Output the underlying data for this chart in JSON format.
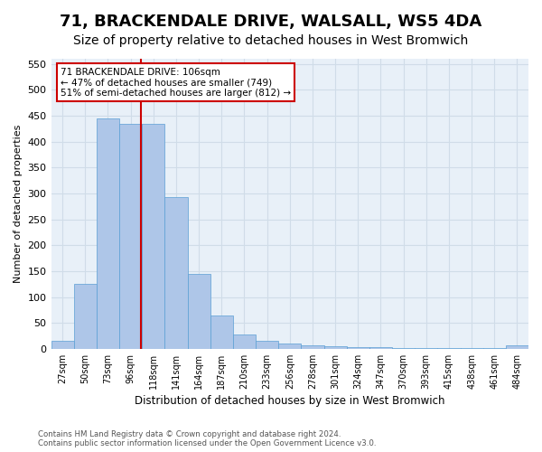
{
  "title": "71, BRACKENDALE DRIVE, WALSALL, WS5 4DA",
  "subtitle": "Size of property relative to detached houses in West Bromwich",
  "xlabel": "Distribution of detached houses by size in West Bromwich",
  "ylabel": "Number of detached properties",
  "footer_line1": "Contains HM Land Registry data © Crown copyright and database right 2024.",
  "footer_line2": "Contains public sector information licensed under the Open Government Licence v3.0.",
  "bar_labels": [
    "27sqm",
    "50sqm",
    "73sqm",
    "96sqm",
    "118sqm",
    "141sqm",
    "164sqm",
    "187sqm",
    "210sqm",
    "233sqm",
    "256sqm",
    "278sqm",
    "301sqm",
    "324sqm",
    "347sqm",
    "370sqm",
    "393sqm",
    "415sqm",
    "438sqm",
    "461sqm",
    "484sqm"
  ],
  "bar_values": [
    15,
    125,
    445,
    435,
    435,
    293,
    145,
    65,
    28,
    15,
    10,
    7,
    5,
    3,
    3,
    2,
    2,
    1,
    1,
    1,
    6
  ],
  "bar_color": "#aec6e8",
  "bar_edge_color": "#5a9fd4",
  "annotation_text": "71 BRACKENDALE DRIVE: 106sqm\n← 47% of detached houses are smaller (749)\n51% of semi-detached houses are larger (812) →",
  "vline_color": "#cc0000",
  "annotation_box_edge_color": "#cc0000",
  "ylim": [
    0,
    560
  ],
  "yticks": [
    0,
    50,
    100,
    150,
    200,
    250,
    300,
    350,
    400,
    450,
    500,
    550
  ],
  "grid_color": "#d0dce8",
  "bg_color": "#e8f0f8",
  "title_fontsize": 13,
  "subtitle_fontsize": 10
}
